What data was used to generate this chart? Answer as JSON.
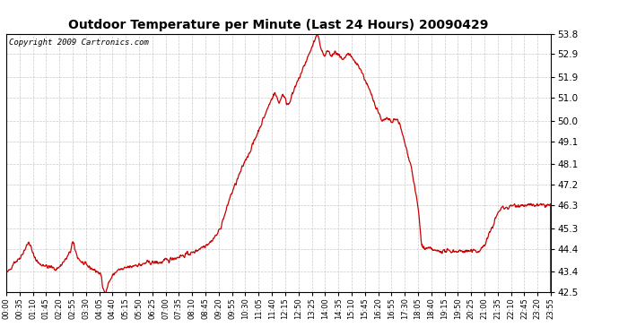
{
  "title": "Outdoor Temperature per Minute (Last 24 Hours) 20090429",
  "copyright": "Copyright 2009 Cartronics.com",
  "line_color": "#cc0000",
  "background_color": "#ffffff",
  "plot_bg_color": "#ffffff",
  "grid_color": "#bbbbbb",
  "yticks": [
    42.5,
    43.4,
    44.4,
    45.3,
    46.3,
    47.2,
    48.1,
    49.1,
    50.0,
    51.0,
    51.9,
    52.9,
    53.8
  ],
  "xtick_labels": [
    "00:00",
    "00:35",
    "01:10",
    "01:45",
    "02:20",
    "02:55",
    "03:30",
    "04:05",
    "04:40",
    "05:15",
    "05:50",
    "06:25",
    "07:00",
    "07:35",
    "08:10",
    "08:45",
    "09:20",
    "09:55",
    "10:30",
    "11:05",
    "11:40",
    "12:15",
    "12:50",
    "13:25",
    "14:00",
    "14:35",
    "15:10",
    "15:45",
    "16:20",
    "16:55",
    "17:30",
    "18:05",
    "18:40",
    "19:15",
    "19:50",
    "20:25",
    "21:00",
    "21:35",
    "22:10",
    "22:45",
    "23:20",
    "23:55"
  ],
  "ymin": 42.5,
  "ymax": 53.8,
  "xmin": 0,
  "xmax": 1439,
  "n_points": 1440,
  "keypoints": [
    [
      0,
      43.3
    ],
    [
      10,
      43.5
    ],
    [
      20,
      43.8
    ],
    [
      30,
      43.9
    ],
    [
      40,
      44.1
    ],
    [
      50,
      44.4
    ],
    [
      60,
      44.7
    ],
    [
      65,
      44.5
    ],
    [
      70,
      44.2
    ],
    [
      80,
      43.9
    ],
    [
      90,
      43.7
    ],
    [
      100,
      43.7
    ],
    [
      110,
      43.6
    ],
    [
      120,
      43.6
    ],
    [
      130,
      43.5
    ],
    [
      140,
      43.6
    ],
    [
      150,
      43.8
    ],
    [
      160,
      44.0
    ],
    [
      170,
      44.3
    ],
    [
      175,
      44.7
    ],
    [
      180,
      44.5
    ],
    [
      185,
      44.2
    ],
    [
      190,
      44.0
    ],
    [
      200,
      43.8
    ],
    [
      210,
      43.7
    ],
    [
      220,
      43.6
    ],
    [
      230,
      43.5
    ],
    [
      240,
      43.4
    ],
    [
      250,
      43.3
    ],
    [
      255,
      42.7
    ],
    [
      260,
      42.5
    ],
    [
      265,
      42.6
    ],
    [
      270,
      42.9
    ],
    [
      280,
      43.2
    ],
    [
      290,
      43.4
    ],
    [
      300,
      43.5
    ],
    [
      310,
      43.5
    ],
    [
      320,
      43.6
    ],
    [
      330,
      43.6
    ],
    [
      340,
      43.7
    ],
    [
      350,
      43.7
    ],
    [
      360,
      43.7
    ],
    [
      370,
      43.8
    ],
    [
      380,
      43.8
    ],
    [
      390,
      43.8
    ],
    [
      400,
      43.8
    ],
    [
      410,
      43.8
    ],
    [
      420,
      43.9
    ],
    [
      430,
      43.9
    ],
    [
      440,
      44.0
    ],
    [
      450,
      44.0
    ],
    [
      460,
      44.1
    ],
    [
      470,
      44.1
    ],
    [
      480,
      44.2
    ],
    [
      490,
      44.2
    ],
    [
      500,
      44.3
    ],
    [
      510,
      44.4
    ],
    [
      520,
      44.5
    ],
    [
      530,
      44.6
    ],
    [
      540,
      44.7
    ],
    [
      550,
      44.9
    ],
    [
      560,
      45.1
    ],
    [
      565,
      45.3
    ],
    [
      570,
      45.5
    ],
    [
      575,
      45.8
    ],
    [
      580,
      46.0
    ],
    [
      585,
      46.3
    ],
    [
      590,
      46.6
    ],
    [
      595,
      46.8
    ],
    [
      600,
      47.0
    ],
    [
      605,
      47.2
    ],
    [
      610,
      47.4
    ],
    [
      615,
      47.6
    ],
    [
      620,
      47.8
    ],
    [
      625,
      48.0
    ],
    [
      630,
      48.2
    ],
    [
      635,
      48.4
    ],
    [
      640,
      48.5
    ],
    [
      645,
      48.7
    ],
    [
      650,
      48.9
    ],
    [
      655,
      49.1
    ],
    [
      660,
      49.3
    ],
    [
      665,
      49.5
    ],
    [
      670,
      49.7
    ],
    [
      675,
      49.9
    ],
    [
      680,
      50.1
    ],
    [
      685,
      50.3
    ],
    [
      690,
      50.5
    ],
    [
      695,
      50.7
    ],
    [
      700,
      50.9
    ],
    [
      705,
      51.1
    ],
    [
      710,
      51.2
    ],
    [
      715,
      51.0
    ],
    [
      720,
      50.8
    ],
    [
      725,
      50.9
    ],
    [
      730,
      51.2
    ],
    [
      735,
      51.0
    ],
    [
      740,
      50.8
    ],
    [
      745,
      50.7
    ],
    [
      750,
      50.9
    ],
    [
      755,
      51.1
    ],
    [
      760,
      51.3
    ],
    [
      765,
      51.5
    ],
    [
      770,
      51.7
    ],
    [
      775,
      51.9
    ],
    [
      780,
      52.1
    ],
    [
      785,
      52.3
    ],
    [
      790,
      52.5
    ],
    [
      795,
      52.7
    ],
    [
      800,
      52.9
    ],
    [
      805,
      53.1
    ],
    [
      810,
      53.3
    ],
    [
      815,
      53.5
    ],
    [
      820,
      53.7
    ],
    [
      822,
      53.8
    ],
    [
      825,
      53.6
    ],
    [
      830,
      53.3
    ],
    [
      835,
      53.0
    ],
    [
      840,
      52.8
    ],
    [
      845,
      52.9
    ],
    [
      850,
      53.1
    ],
    [
      855,
      52.9
    ],
    [
      860,
      52.8
    ],
    [
      865,
      52.9
    ],
    [
      870,
      53.0
    ],
    [
      875,
      52.9
    ],
    [
      880,
      52.8
    ],
    [
      885,
      52.7
    ],
    [
      890,
      52.6
    ],
    [
      895,
      52.7
    ],
    [
      900,
      52.9
    ],
    [
      905,
      52.9
    ],
    [
      910,
      52.8
    ],
    [
      915,
      52.7
    ],
    [
      920,
      52.6
    ],
    [
      925,
      52.5
    ],
    [
      930,
      52.4
    ],
    [
      935,
      52.3
    ],
    [
      940,
      52.1
    ],
    [
      945,
      51.9
    ],
    [
      950,
      51.7
    ],
    [
      955,
      51.5
    ],
    [
      960,
      51.3
    ],
    [
      965,
      51.1
    ],
    [
      970,
      50.9
    ],
    [
      975,
      50.7
    ],
    [
      980,
      50.5
    ],
    [
      985,
      50.3
    ],
    [
      990,
      50.1
    ],
    [
      995,
      50.0
    ],
    [
      1000,
      50.0
    ],
    [
      1005,
      50.1
    ],
    [
      1010,
      50.0
    ],
    [
      1015,
      50.0
    ],
    [
      1020,
      49.9
    ],
    [
      1025,
      50.0
    ],
    [
      1030,
      50.1
    ],
    [
      1035,
      50.0
    ],
    [
      1040,
      49.8
    ],
    [
      1045,
      49.5
    ],
    [
      1050,
      49.2
    ],
    [
      1055,
      48.9
    ],
    [
      1060,
      48.6
    ],
    [
      1065,
      48.3
    ],
    [
      1070,
      48.0
    ],
    [
      1075,
      47.5
    ],
    [
      1080,
      47.0
    ],
    [
      1085,
      46.5
    ],
    [
      1090,
      46.0
    ],
    [
      1092,
      45.5
    ],
    [
      1095,
      45.0
    ],
    [
      1097,
      44.6
    ],
    [
      1100,
      44.5
    ],
    [
      1105,
      44.4
    ],
    [
      1110,
      44.4
    ],
    [
      1115,
      44.4
    ],
    [
      1120,
      44.4
    ],
    [
      1125,
      44.4
    ],
    [
      1130,
      44.3
    ],
    [
      1135,
      44.3
    ],
    [
      1140,
      44.3
    ],
    [
      1145,
      44.3
    ],
    [
      1150,
      44.3
    ],
    [
      1155,
      44.3
    ],
    [
      1160,
      44.3
    ],
    [
      1165,
      44.3
    ],
    [
      1170,
      44.3
    ],
    [
      1175,
      44.3
    ],
    [
      1180,
      44.3
    ],
    [
      1185,
      44.3
    ],
    [
      1190,
      44.3
    ],
    [
      1195,
      44.3
    ],
    [
      1200,
      44.3
    ],
    [
      1205,
      44.3
    ],
    [
      1210,
      44.3
    ],
    [
      1215,
      44.3
    ],
    [
      1220,
      44.3
    ],
    [
      1225,
      44.3
    ],
    [
      1230,
      44.3
    ],
    [
      1235,
      44.3
    ],
    [
      1240,
      44.3
    ],
    [
      1245,
      44.3
    ],
    [
      1250,
      44.3
    ],
    [
      1255,
      44.4
    ],
    [
      1260,
      44.5
    ],
    [
      1265,
      44.6
    ],
    [
      1270,
      44.8
    ],
    [
      1275,
      45.0
    ],
    [
      1280,
      45.2
    ],
    [
      1285,
      45.4
    ],
    [
      1290,
      45.6
    ],
    [
      1295,
      45.8
    ],
    [
      1300,
      46.0
    ],
    [
      1305,
      46.1
    ],
    [
      1310,
      46.2
    ],
    [
      1315,
      46.2
    ],
    [
      1320,
      46.2
    ],
    [
      1325,
      46.2
    ],
    [
      1330,
      46.2
    ],
    [
      1335,
      46.3
    ],
    [
      1340,
      46.3
    ],
    [
      1345,
      46.3
    ],
    [
      1350,
      46.3
    ],
    [
      1355,
      46.3
    ],
    [
      1360,
      46.3
    ],
    [
      1365,
      46.3
    ],
    [
      1370,
      46.3
    ],
    [
      1375,
      46.3
    ],
    [
      1380,
      46.3
    ],
    [
      1385,
      46.3
    ],
    [
      1390,
      46.3
    ],
    [
      1395,
      46.3
    ],
    [
      1400,
      46.3
    ],
    [
      1405,
      46.3
    ],
    [
      1410,
      46.3
    ],
    [
      1415,
      46.3
    ],
    [
      1420,
      46.3
    ],
    [
      1425,
      46.3
    ],
    [
      1430,
      46.3
    ],
    [
      1435,
      46.3
    ],
    [
      1439,
      46.3
    ]
  ]
}
